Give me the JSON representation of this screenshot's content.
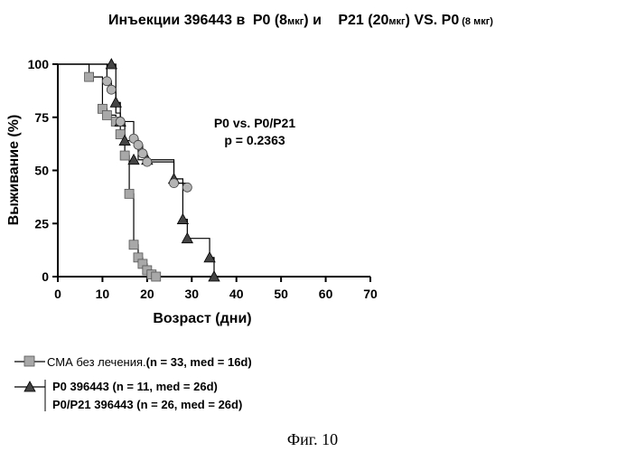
{
  "title": {
    "p1": "Инъекции 396443 в ",
    "p2": "P0 (8",
    "p3": "мкг",
    "p4": ") и   ",
    "p5": "P21 (20",
    "p6": "мкг",
    "p7": ") VS. ",
    "p8": "P0",
    "p9": "(8 мкг)"
  },
  "annotation": {
    "line1": "P0 vs. P0/P21",
    "line2": "p = 0.2363"
  },
  "legend": [
    {
      "name_a": "СМА без лечения.",
      "name_b": "(n = 33, med = 16d)",
      "marker": "square"
    },
    {
      "name_a": "P0 396443 ",
      "name_b": "(n = 11, med = 26d)",
      "marker": "triangle"
    },
    {
      "name_a": "P0/P21 396443 ",
      "name_b": "(n = 26, med = 26d)",
      "marker": "circle"
    }
  ],
  "caption": "Фиг. 10",
  "colors": {
    "square": "#a8a8a8",
    "circle": "#b4b4b4",
    "triangle": "#444444",
    "line": "#000000"
  },
  "chart_data": {
    "type": "line",
    "xlabel": "Возраст (дни)",
    "ylabel": "Выживание (%)",
    "xlim": [
      0,
      70
    ],
    "ylim": [
      0,
      100
    ],
    "xticks": [
      0,
      10,
      20,
      30,
      40,
      50,
      60,
      70
    ],
    "yticks": [
      0,
      25,
      50,
      75,
      100
    ],
    "series": [
      {
        "name": "СМА без лечения. (n = 33, med = 16d)",
        "marker": "square",
        "steps": [
          [
            0,
            100
          ],
          [
            7,
            94
          ],
          [
            10,
            79
          ],
          [
            11,
            76
          ],
          [
            13,
            73
          ],
          [
            14,
            67
          ],
          [
            15,
            57
          ],
          [
            16,
            39
          ],
          [
            17,
            15
          ],
          [
            18,
            9
          ],
          [
            19,
            6
          ],
          [
            20,
            3
          ],
          [
            21,
            1
          ],
          [
            22,
            0
          ]
        ],
        "points": [
          [
            7,
            94
          ],
          [
            10,
            79
          ],
          [
            11,
            76
          ],
          [
            13,
            73
          ],
          [
            14,
            67
          ],
          [
            15,
            57
          ],
          [
            16,
            39
          ],
          [
            17,
            15
          ],
          [
            18,
            9
          ],
          [
            19,
            6
          ],
          [
            20,
            3
          ],
          [
            21,
            1
          ],
          [
            22,
            0
          ]
        ]
      },
      {
        "name": "P0 396443 (n = 11, med = 26d)",
        "marker": "triangle",
        "steps": [
          [
            0,
            100
          ],
          [
            12,
            100
          ],
          [
            13,
            82
          ],
          [
            14,
            73
          ],
          [
            15,
            64
          ],
          [
            18,
            55
          ],
          [
            20,
            55
          ],
          [
            26,
            46
          ],
          [
            28,
            27
          ],
          [
            29,
            18
          ],
          [
            34,
            9
          ],
          [
            35,
            0
          ]
        ],
        "points": [
          [
            12,
            100
          ],
          [
            13,
            82
          ],
          [
            14,
            73
          ],
          [
            15,
            64
          ],
          [
            17,
            55
          ],
          [
            20,
            55
          ],
          [
            26,
            46
          ],
          [
            28,
            27
          ],
          [
            29,
            18
          ],
          [
            34,
            9
          ],
          [
            35,
            0
          ]
        ]
      },
      {
        "name": "P0/P21 396443 (n = 26, med = 26d)",
        "marker": "circle",
        "steps": [
          [
            0,
            100
          ],
          [
            11,
            92
          ],
          [
            12,
            88
          ],
          [
            13,
            77
          ],
          [
            14,
            73
          ],
          [
            17,
            65
          ],
          [
            18,
            62
          ],
          [
            19,
            58
          ],
          [
            20,
            54
          ],
          [
            26,
            44
          ],
          [
            29,
            42
          ],
          [
            30,
            42
          ]
        ],
        "points": [
          [
            11,
            92
          ],
          [
            12,
            88
          ],
          [
            14,
            73
          ],
          [
            17,
            65
          ],
          [
            18,
            62
          ],
          [
            19,
            58
          ],
          [
            20,
            54
          ],
          [
            26,
            44
          ],
          [
            29,
            42
          ]
        ]
      }
    ]
  }
}
